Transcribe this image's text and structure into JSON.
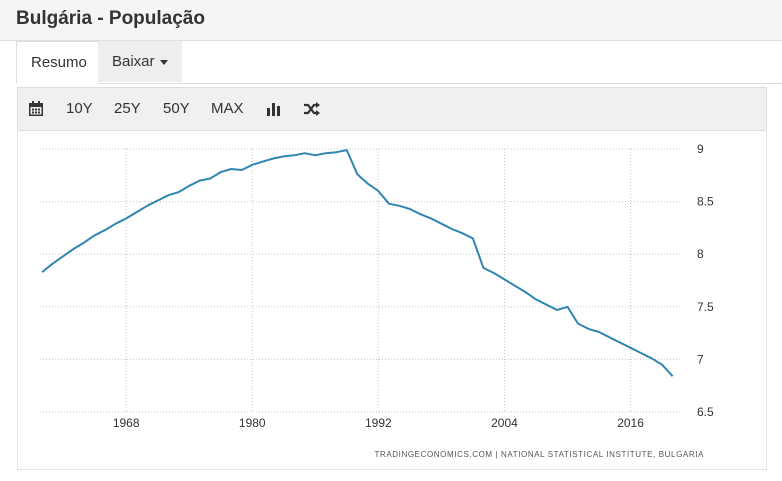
{
  "header": {
    "title": "Bulgária - População"
  },
  "tabs": [
    {
      "label": "Resumo"
    },
    {
      "label": "Baixar"
    }
  ],
  "toolbar": {
    "calendar_icon": "calendar-icon",
    "ranges": [
      "10Y",
      "25Y",
      "50Y",
      "MAX"
    ],
    "bar_chart_icon": "bar-chart-icon",
    "shuffle_icon": "shuffle-icon"
  },
  "colors": {
    "line": "#2e86b1",
    "grid": "#c8c8c8",
    "tick_text": "#333333",
    "source_text": "#555555"
  },
  "chart_data": {
    "type": "line",
    "title": "",
    "xlabel": "",
    "ylabel": "",
    "x_ticks": [
      1968,
      1980,
      1992,
      2004,
      2016
    ],
    "y_ticks": [
      6.5,
      7,
      7.5,
      8,
      8.5,
      9
    ],
    "xlim": [
      1959.8,
      2020.8
    ],
    "ylim": [
      6.5,
      9
    ],
    "y_axis_side": "right",
    "grid": "dotted",
    "source": "TRADINGECONOMICS.COM  |  NATIONAL STATISTICAL INSTITUTE, BULGARIA",
    "series": [
      {
        "x": [
          1960,
          1961,
          1962,
          1963,
          1964,
          1965,
          1966,
          1967,
          1968,
          1969,
          1970,
          1971,
          1972,
          1973,
          1974,
          1975,
          1976,
          1977,
          1978,
          1979,
          1980,
          1981,
          1982,
          1983,
          1984,
          1985,
          1986,
          1987,
          1988,
          1989,
          1990,
          1991,
          1992,
          1993,
          1994,
          1995,
          1996,
          1997,
          1998,
          1999,
          2000,
          2001,
          2002,
          2003,
          2004,
          2005,
          2006,
          2007,
          2008,
          2009,
          2010,
          2011,
          2012,
          2013,
          2014,
          2015,
          2016,
          2017,
          2018,
          2019,
          2020
        ],
        "y": [
          7.83,
          7.91,
          7.98,
          8.05,
          8.11,
          8.18,
          8.23,
          8.29,
          8.34,
          8.4,
          8.46,
          8.51,
          8.56,
          8.59,
          8.65,
          8.7,
          8.72,
          8.78,
          8.81,
          8.8,
          8.85,
          8.88,
          8.91,
          8.93,
          8.94,
          8.96,
          8.94,
          8.96,
          8.97,
          8.99,
          8.76,
          8.67,
          8.6,
          8.48,
          8.46,
          8.43,
          8.38,
          8.34,
          8.29,
          8.24,
          8.2,
          8.15,
          7.87,
          7.82,
          7.76,
          7.7,
          7.64,
          7.57,
          7.52,
          7.47,
          7.5,
          7.34,
          7.29,
          7.26,
          7.21,
          7.16,
          7.11,
          7.06,
          7.01,
          6.95,
          6.84
        ]
      }
    ]
  }
}
